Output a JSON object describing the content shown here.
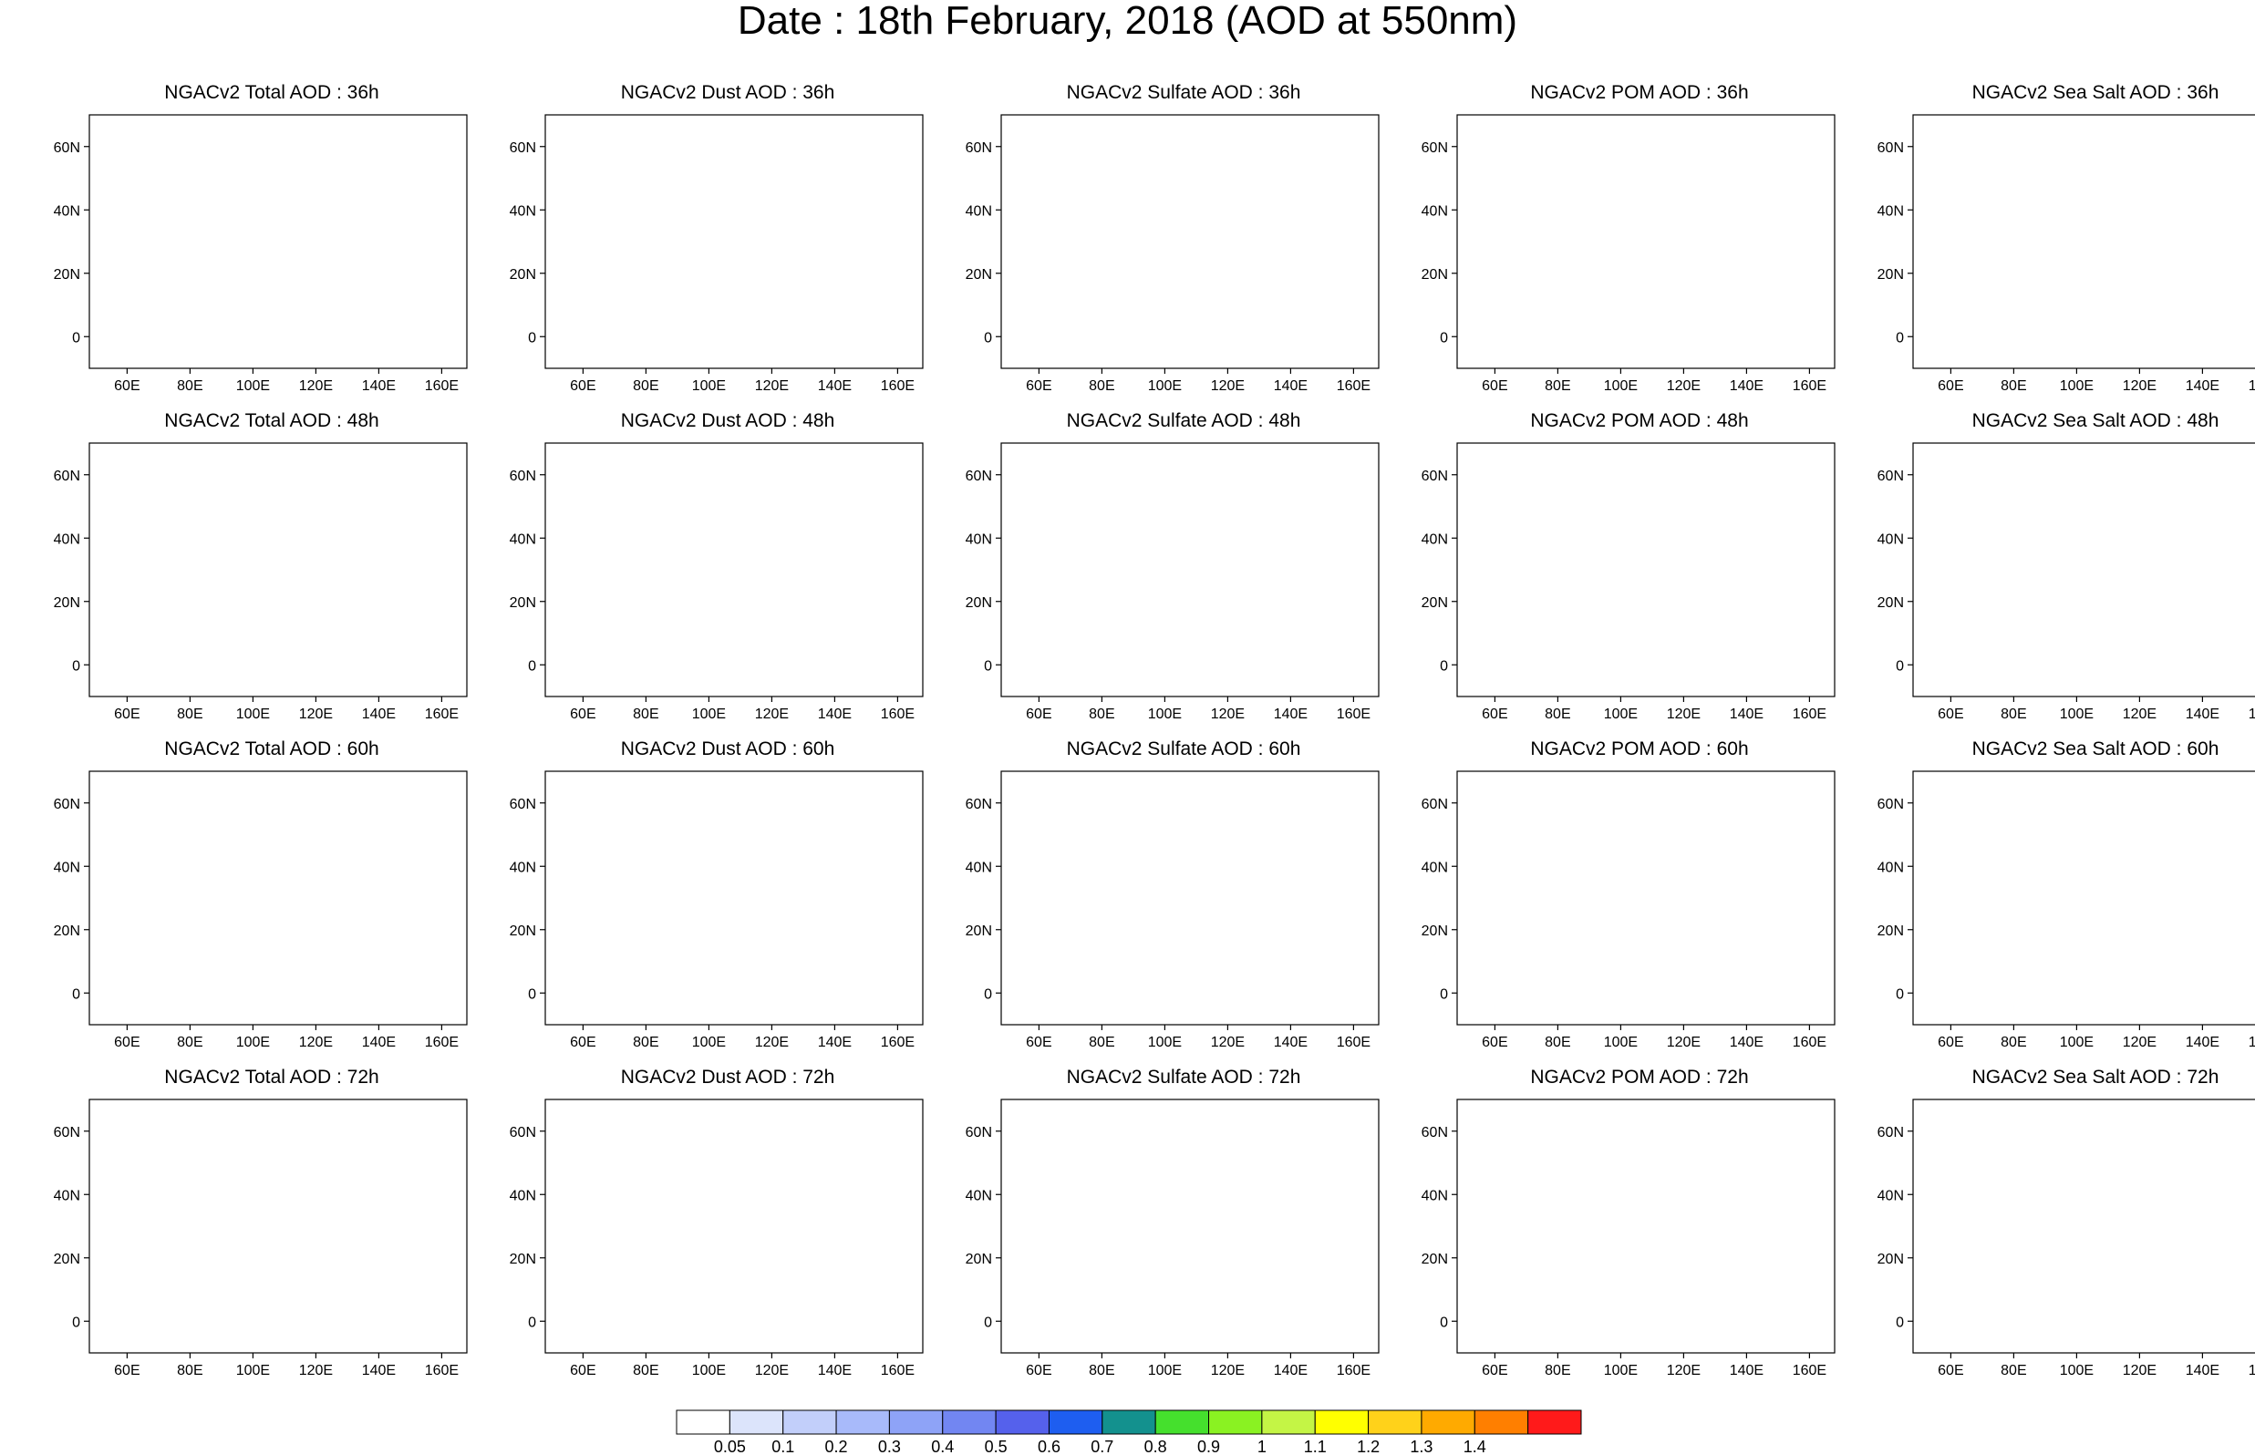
{
  "title": "Date : 18th February, 2018 (AOD at 550nm)",
  "panels": [
    {
      "title": "NGACv2 Total AOD : 36h",
      "species": "total"
    },
    {
      "title": "NGACv2 Dust AOD : 36h",
      "species": "dust"
    },
    {
      "title": "NGACv2 Sulfate AOD : 36h",
      "species": "sulfate"
    },
    {
      "title": "NGACv2 POM AOD : 36h",
      "species": "pom"
    },
    {
      "title": "NGACv2 Sea Salt AOD : 36h",
      "species": "seasalt"
    },
    {
      "title": "NGACv2 Total AOD : 48h",
      "species": "total"
    },
    {
      "title": "NGACv2 Dust AOD : 48h",
      "species": "dust"
    },
    {
      "title": "NGACv2 Sulfate AOD : 48h",
      "species": "sulfate"
    },
    {
      "title": "NGACv2 POM AOD : 48h",
      "species": "pom"
    },
    {
      "title": "NGACv2 Sea Salt AOD : 48h",
      "species": "seasalt"
    },
    {
      "title": "NGACv2 Total AOD : 60h",
      "species": "total"
    },
    {
      "title": "NGACv2 Dust AOD : 60h",
      "species": "dust"
    },
    {
      "title": "NGACv2 Sulfate AOD : 60h",
      "species": "sulfate"
    },
    {
      "title": "NGACv2 POM AOD : 60h",
      "species": "pom"
    },
    {
      "title": "NGACv2 Sea Salt AOD : 60h",
      "species": "seasalt"
    },
    {
      "title": "NGACv2 Total AOD : 72h",
      "species": "total"
    },
    {
      "title": "NGACv2 Dust AOD : 72h",
      "species": "dust"
    },
    {
      "title": "NGACv2 Sulfate AOD : 72h",
      "species": "sulfate"
    },
    {
      "title": "NGACv2 POM AOD : 72h",
      "species": "pom"
    },
    {
      "title": "NGACv2 Sea Salt  AOD : 72h",
      "species": "seasalt"
    }
  ],
  "axes": {
    "lon_ticks": [
      "60E",
      "80E",
      "100E",
      "120E",
      "140E",
      "160E"
    ],
    "lon_values": [
      60,
      80,
      100,
      120,
      140,
      160
    ],
    "lon_range": [
      48,
      168
    ],
    "lat_ticks": [
      "60N",
      "40N",
      "20N",
      "0"
    ],
    "lat_values": [
      60,
      40,
      20,
      0
    ],
    "lat_range": [
      -10,
      70
    ]
  },
  "colorbar": {
    "labels": [
      "0.05",
      "0.1",
      "0.2",
      "0.3",
      "0.4",
      "0.5",
      "0.6",
      "0.7",
      "0.8",
      "0.9",
      "1",
      "1.1",
      "1.2",
      "1.3",
      "1.4"
    ],
    "colors": [
      "#ffffff",
      "#dce4fb",
      "#c2cffa",
      "#a8bafa",
      "#8ea3f7",
      "#7286f2",
      "#5561ec",
      "#1e5ef0",
      "#13918e",
      "#45e02d",
      "#8af222",
      "#c4f545",
      "#ffff00",
      "#ffd21a",
      "#ffaa00",
      "#ff7f00",
      "#ff1a1a"
    ]
  }
}
